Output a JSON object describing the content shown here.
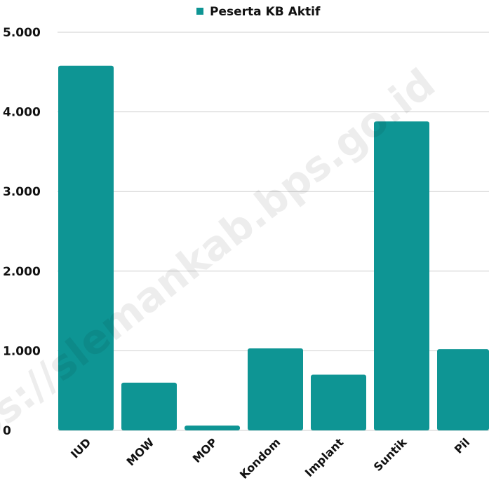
{
  "chart_data": {
    "type": "bar",
    "title": "",
    "xlabel": "",
    "ylabel": "",
    "legend": {
      "position": "top-center"
    },
    "series": [
      {
        "name": "Peserta KB Aktif",
        "color": "#0e9594",
        "values": [
          4580,
          600,
          60,
          1030,
          700,
          3880,
          1020
        ]
      }
    ],
    "categories": [
      "IUD",
      "MOW",
      "MOP",
      "Kondom",
      "Implant",
      "Suntik",
      "Pil"
    ],
    "ylim": [
      0,
      5000
    ],
    "yticks": [
      0,
      1000,
      2000,
      3000,
      4000,
      5000
    ],
    "ytick_labels": [
      "0",
      "1.000",
      "2.000",
      "3.000",
      "4.000",
      "5.000"
    ],
    "grid": {
      "y": true,
      "x": false,
      "color": "#cfcfcf"
    }
  },
  "watermark": {
    "text": "https://slemankab.bps.go.id"
  }
}
